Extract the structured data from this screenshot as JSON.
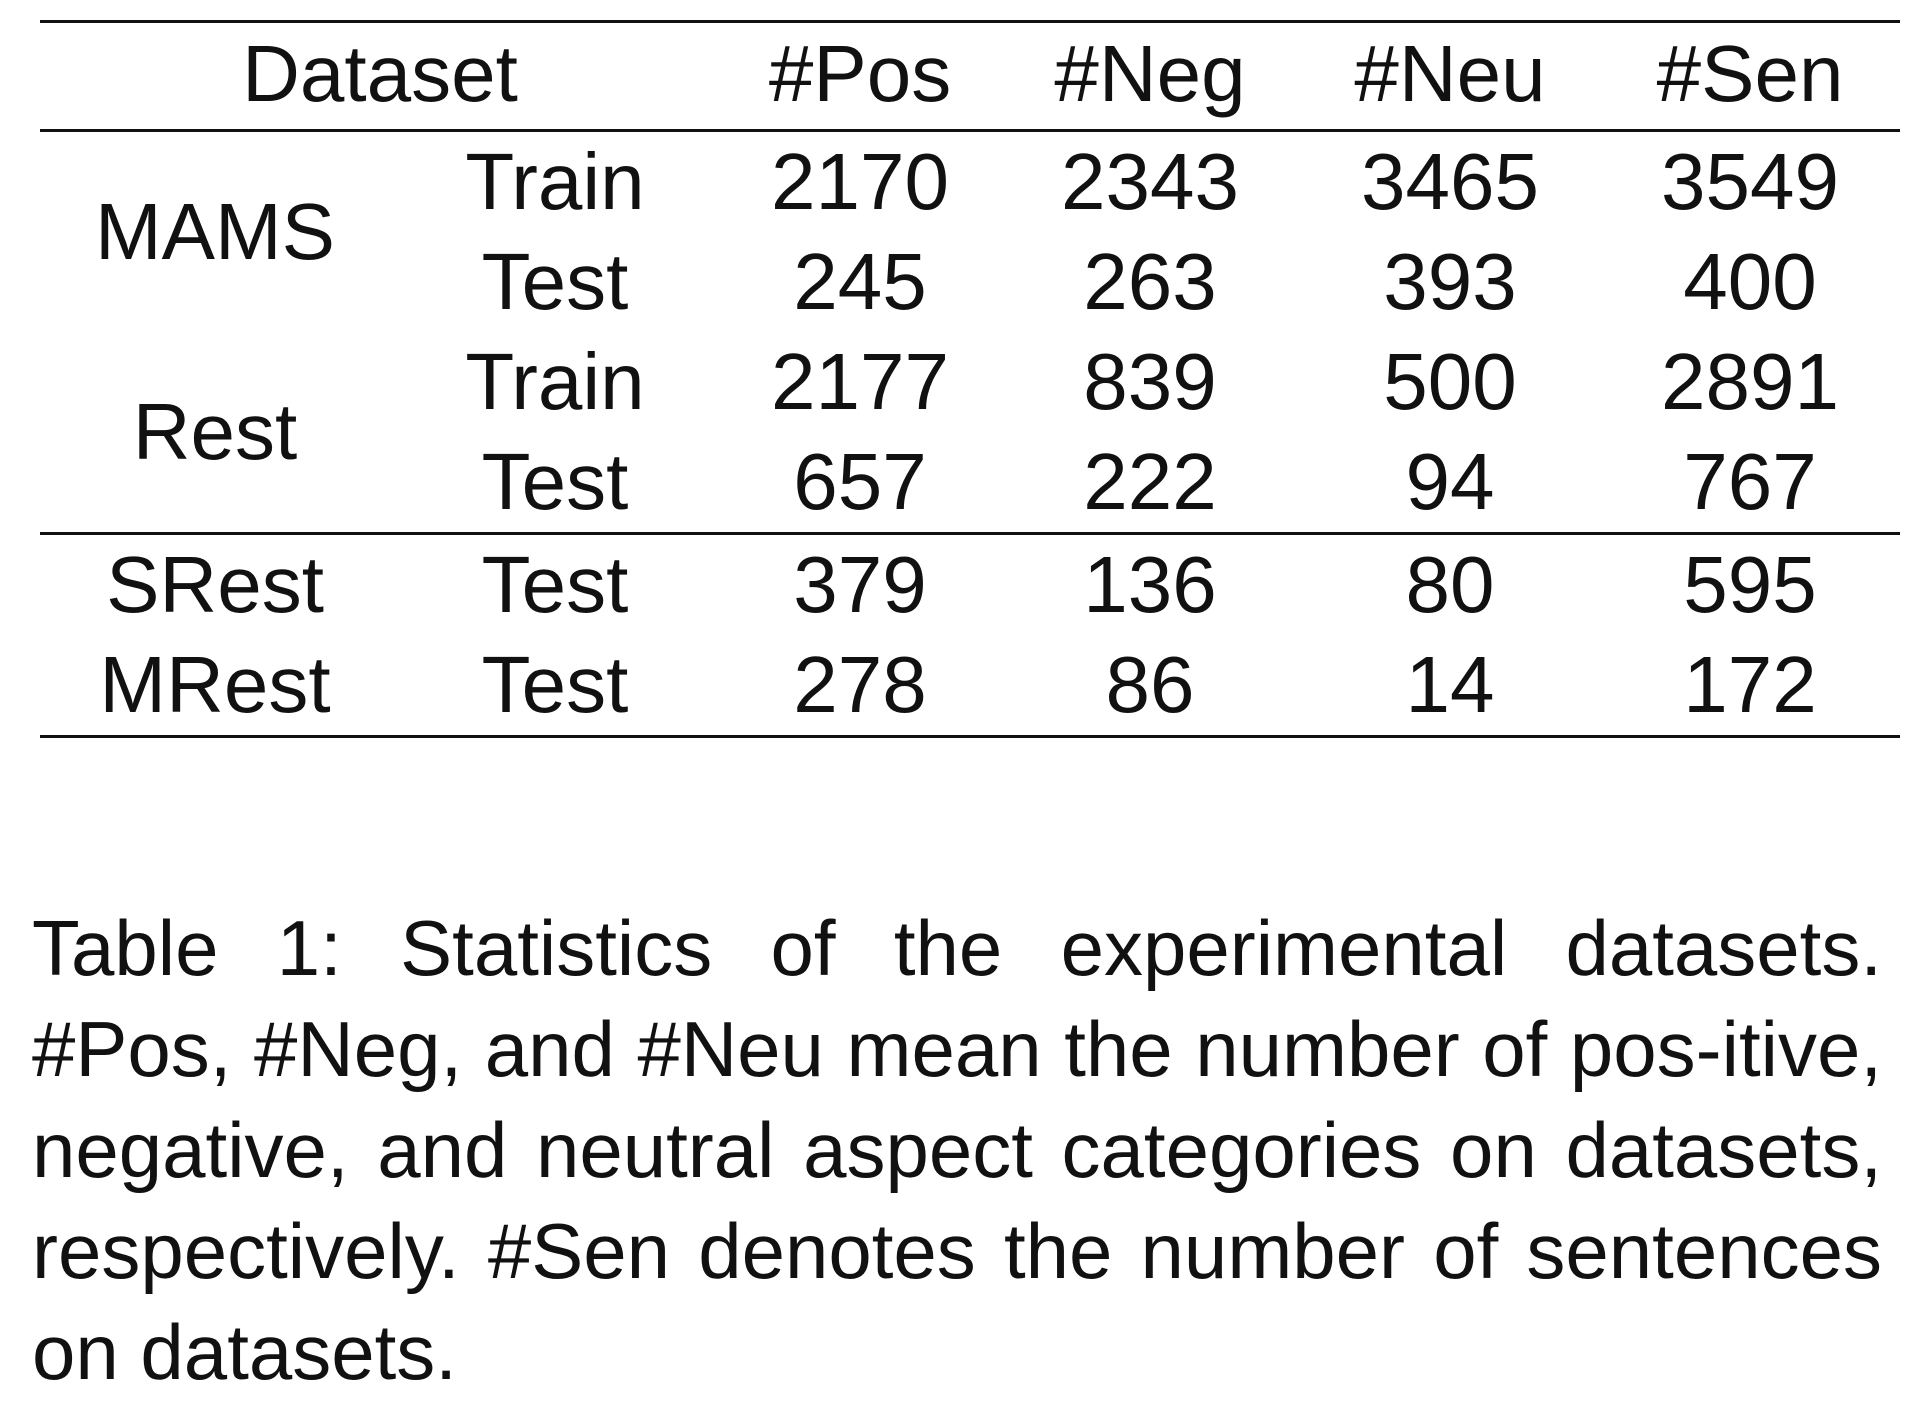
{
  "table": {
    "header": {
      "dataset": "Dataset",
      "pos": "#Pos",
      "neg": "#Neg",
      "neu": "#Neu",
      "sen": "#Sen"
    },
    "groups": [
      {
        "name": "MAMS",
        "rows": [
          {
            "split": "Train",
            "pos": "2170",
            "neg": "2343",
            "neu": "3465",
            "sen": "3549"
          },
          {
            "split": "Test",
            "pos": "245",
            "neg": "263",
            "neu": "393",
            "sen": "400"
          }
        ]
      },
      {
        "name": "Rest",
        "rows": [
          {
            "split": "Train",
            "pos": "2177",
            "neg": "839",
            "neu": "500",
            "sen": "2891"
          },
          {
            "split": "Test",
            "pos": "657",
            "neg": "222",
            "neu": "94",
            "sen": "767"
          }
        ]
      }
    ],
    "extra_rows": [
      {
        "name": "SRest",
        "split": "Test",
        "pos": "379",
        "neg": "136",
        "neu": "80",
        "sen": "595"
      },
      {
        "name": "MRest",
        "split": "Test",
        "pos": "278",
        "neg": "86",
        "neu": "14",
        "sen": "172"
      }
    ]
  },
  "caption": "Table 1: Statistics of the experimental datasets. #Pos, #Neg, and #Neu mean the number of pos-itive, negative, and neutral aspect categories on datasets, respectively. #Sen denotes the number of sentences on datasets."
}
